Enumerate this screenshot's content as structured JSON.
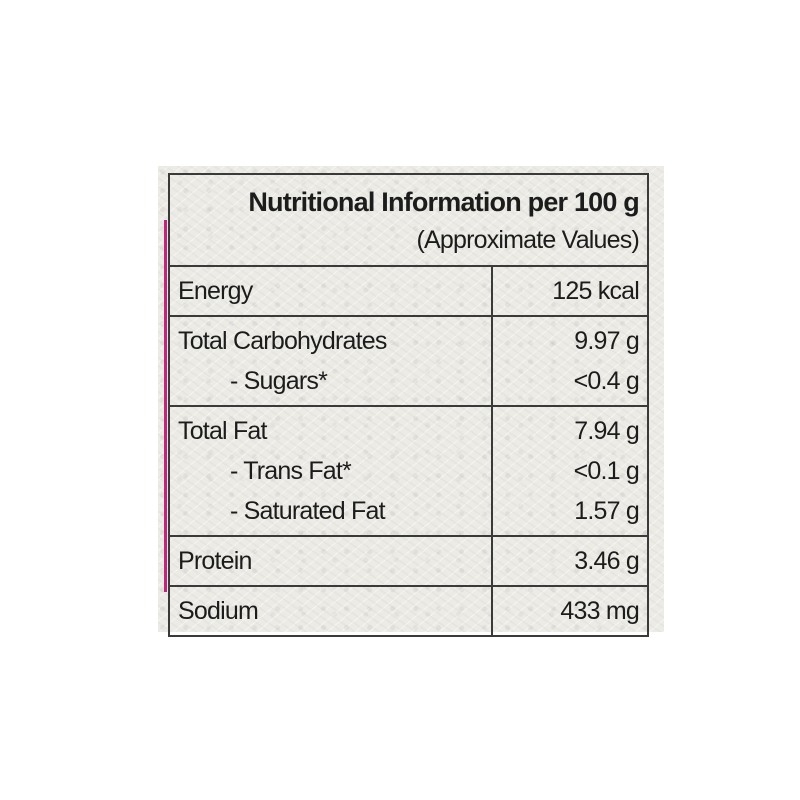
{
  "label": {
    "title": "Nutritional Information per 100 g",
    "subtitle": "(Approximate Values)",
    "accent_color": "#c2257a",
    "rows": [
      {
        "items": [
          {
            "name": "Energy",
            "value": "125 kcal"
          }
        ]
      },
      {
        "items": [
          {
            "name": "Total Carbohydrates",
            "value": "9.97 g"
          },
          {
            "name": "- Sugars*",
            "value": "<0.4 g"
          }
        ]
      },
      {
        "items": [
          {
            "name": "Total Fat",
            "value": "7.94 g"
          },
          {
            "name": "- Trans Fat*",
            "value": "<0.1 g"
          },
          {
            "name": "- Saturated Fat",
            "value": "1.57 g"
          }
        ]
      },
      {
        "items": [
          {
            "name": "Protein",
            "value": "3.46 g"
          }
        ]
      },
      {
        "items": [
          {
            "name": "Sodium",
            "value": "433 mg"
          }
        ]
      }
    ]
  }
}
